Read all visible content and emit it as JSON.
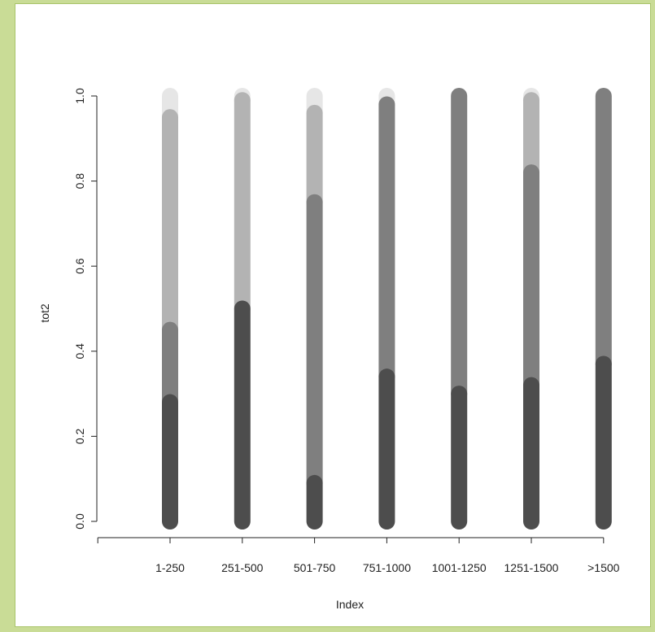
{
  "chart_data": {
    "type": "bar",
    "stacked": true,
    "bar_style": "thick rounded vertical segments",
    "xlabel": "Index",
    "ylabel": "tot2",
    "ylim": [
      0,
      1
    ],
    "yticks": [
      "0.0",
      "0.2",
      "0.4",
      "0.6",
      "0.8",
      "1.0"
    ],
    "categories": [
      "1-250",
      "251-500",
      "501-750",
      "751-1000",
      "1001-1250",
      "1251-1500",
      ">1500"
    ],
    "series": [
      {
        "color": "#4d4d4d",
        "values": [
          0.28,
          0.5,
          0.09,
          0.34,
          0.3,
          0.32,
          0.37
        ]
      },
      {
        "color": "#7f7f7f",
        "values": [
          0.17,
          0.0,
          0.66,
          0.64,
          0.7,
          0.5,
          0.63
        ]
      },
      {
        "color": "#b3b3b3",
        "values": [
          0.5,
          0.49,
          0.21,
          0.0,
          0.0,
          0.17,
          0.0
        ]
      },
      {
        "color": "#e6e6e6",
        "values": [
          0.05,
          0.01,
          0.04,
          0.02,
          0.0,
          0.01,
          0.0
        ]
      }
    ],
    "grid": false,
    "legend": "none"
  }
}
